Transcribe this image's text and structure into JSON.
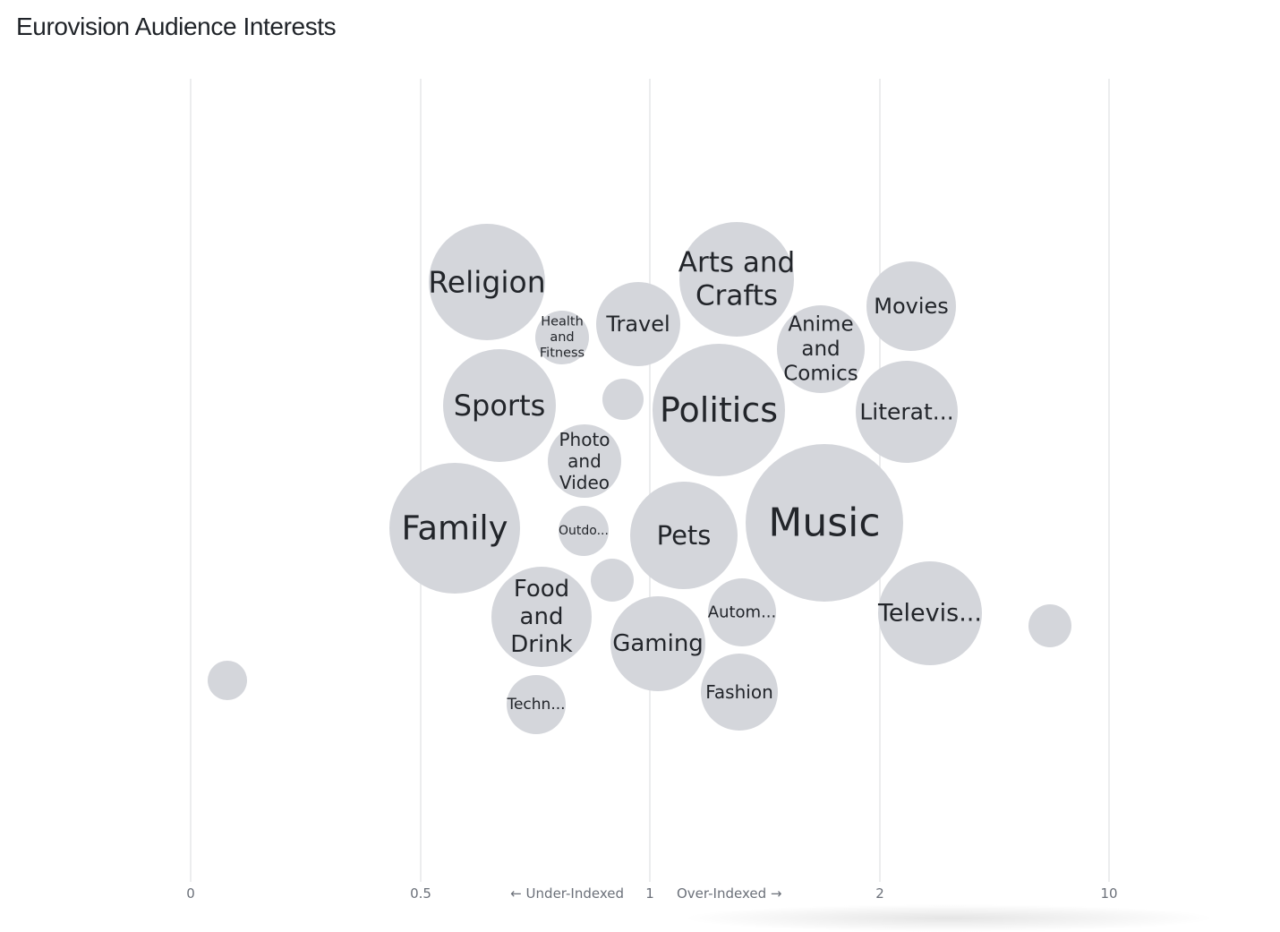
{
  "title": "Eurovision Audience Interests",
  "axis": {
    "ticks": [
      {
        "label": "0",
        "value": 0
      },
      {
        "label": "0.5",
        "value": 0.5
      },
      {
        "label": "1",
        "value": 1
      },
      {
        "label": "2",
        "value": 2
      },
      {
        "label": "10",
        "value": 10
      }
    ],
    "under_label": "← Under-Indexed",
    "over_label": "Over-Indexed →"
  },
  "chart_data": {
    "type": "scatter",
    "title": "Eurovision Audience Interests",
    "xlabel": "",
    "ylabel": "",
    "x_scale": "index (piecewise: 0, 0.5, 1, 2, 10)",
    "grid": true,
    "points": [
      {
        "label": "Religion",
        "lines": [
          "Religion"
        ],
        "x": 0.63
      },
      {
        "label": "Health and Fitness",
        "lines": [
          "Health",
          "and",
          "Fitness"
        ],
        "x": 0.8
      },
      {
        "label": "Travel",
        "lines": [
          "Travel"
        ],
        "x": 0.98
      },
      {
        "label": "Arts and Crafts",
        "lines": [
          "Arts and",
          "Crafts"
        ],
        "x": 1.38
      },
      {
        "label": "Anime and Comics",
        "lines": [
          "Anime",
          "and",
          "Comics"
        ],
        "x": 1.75
      },
      {
        "label": "Movies",
        "lines": [
          "Movies"
        ],
        "x": 2.28
      },
      {
        "label": "Sports",
        "lines": [
          "Sports"
        ],
        "x": 0.67
      },
      {
        "label": "",
        "lines": [],
        "x": 0.94
      },
      {
        "label": "Politics",
        "lines": [
          "Politics"
        ],
        "x": 1.3
      },
      {
        "label": "Literat...",
        "lines": [
          "Literat..."
        ],
        "x": 2.12
      },
      {
        "label": "Photo and Video",
        "lines": [
          "Photo",
          "and",
          "Video"
        ],
        "x": 0.85
      },
      {
        "label": "Family",
        "lines": [
          "Family"
        ],
        "x": 0.57
      },
      {
        "label": "Outdo...",
        "lines": [
          "Outdo..."
        ],
        "x": 0.85
      },
      {
        "label": "Pets",
        "lines": [
          "Pets"
        ],
        "x": 1.15
      },
      {
        "label": "Music",
        "lines": [
          "Music"
        ],
        "x": 1.77
      },
      {
        "label": "",
        "lines": [],
        "x": 0.92
      },
      {
        "label": "Food and Drink",
        "lines": [
          "Food",
          "and",
          "Drink"
        ],
        "x": 0.76
      },
      {
        "label": "Autom...",
        "lines": [
          "Autom..."
        ],
        "x": 1.4
      },
      {
        "label": "Gaming",
        "lines": [
          "Gaming"
        ],
        "x": 1.04
      },
      {
        "label": "Televis...",
        "lines": [
          "Televis..."
        ],
        "x": 2.6
      },
      {
        "label": "",
        "lines": [],
        "x": 8.0
      },
      {
        "label": "",
        "lines": [],
        "x": 0.08
      },
      {
        "label": "Fashion",
        "lines": [
          "Fashion"
        ],
        "x": 1.39
      },
      {
        "label": "Techn...",
        "lines": [
          "Techn..."
        ],
        "x": 0.75
      }
    ]
  }
}
